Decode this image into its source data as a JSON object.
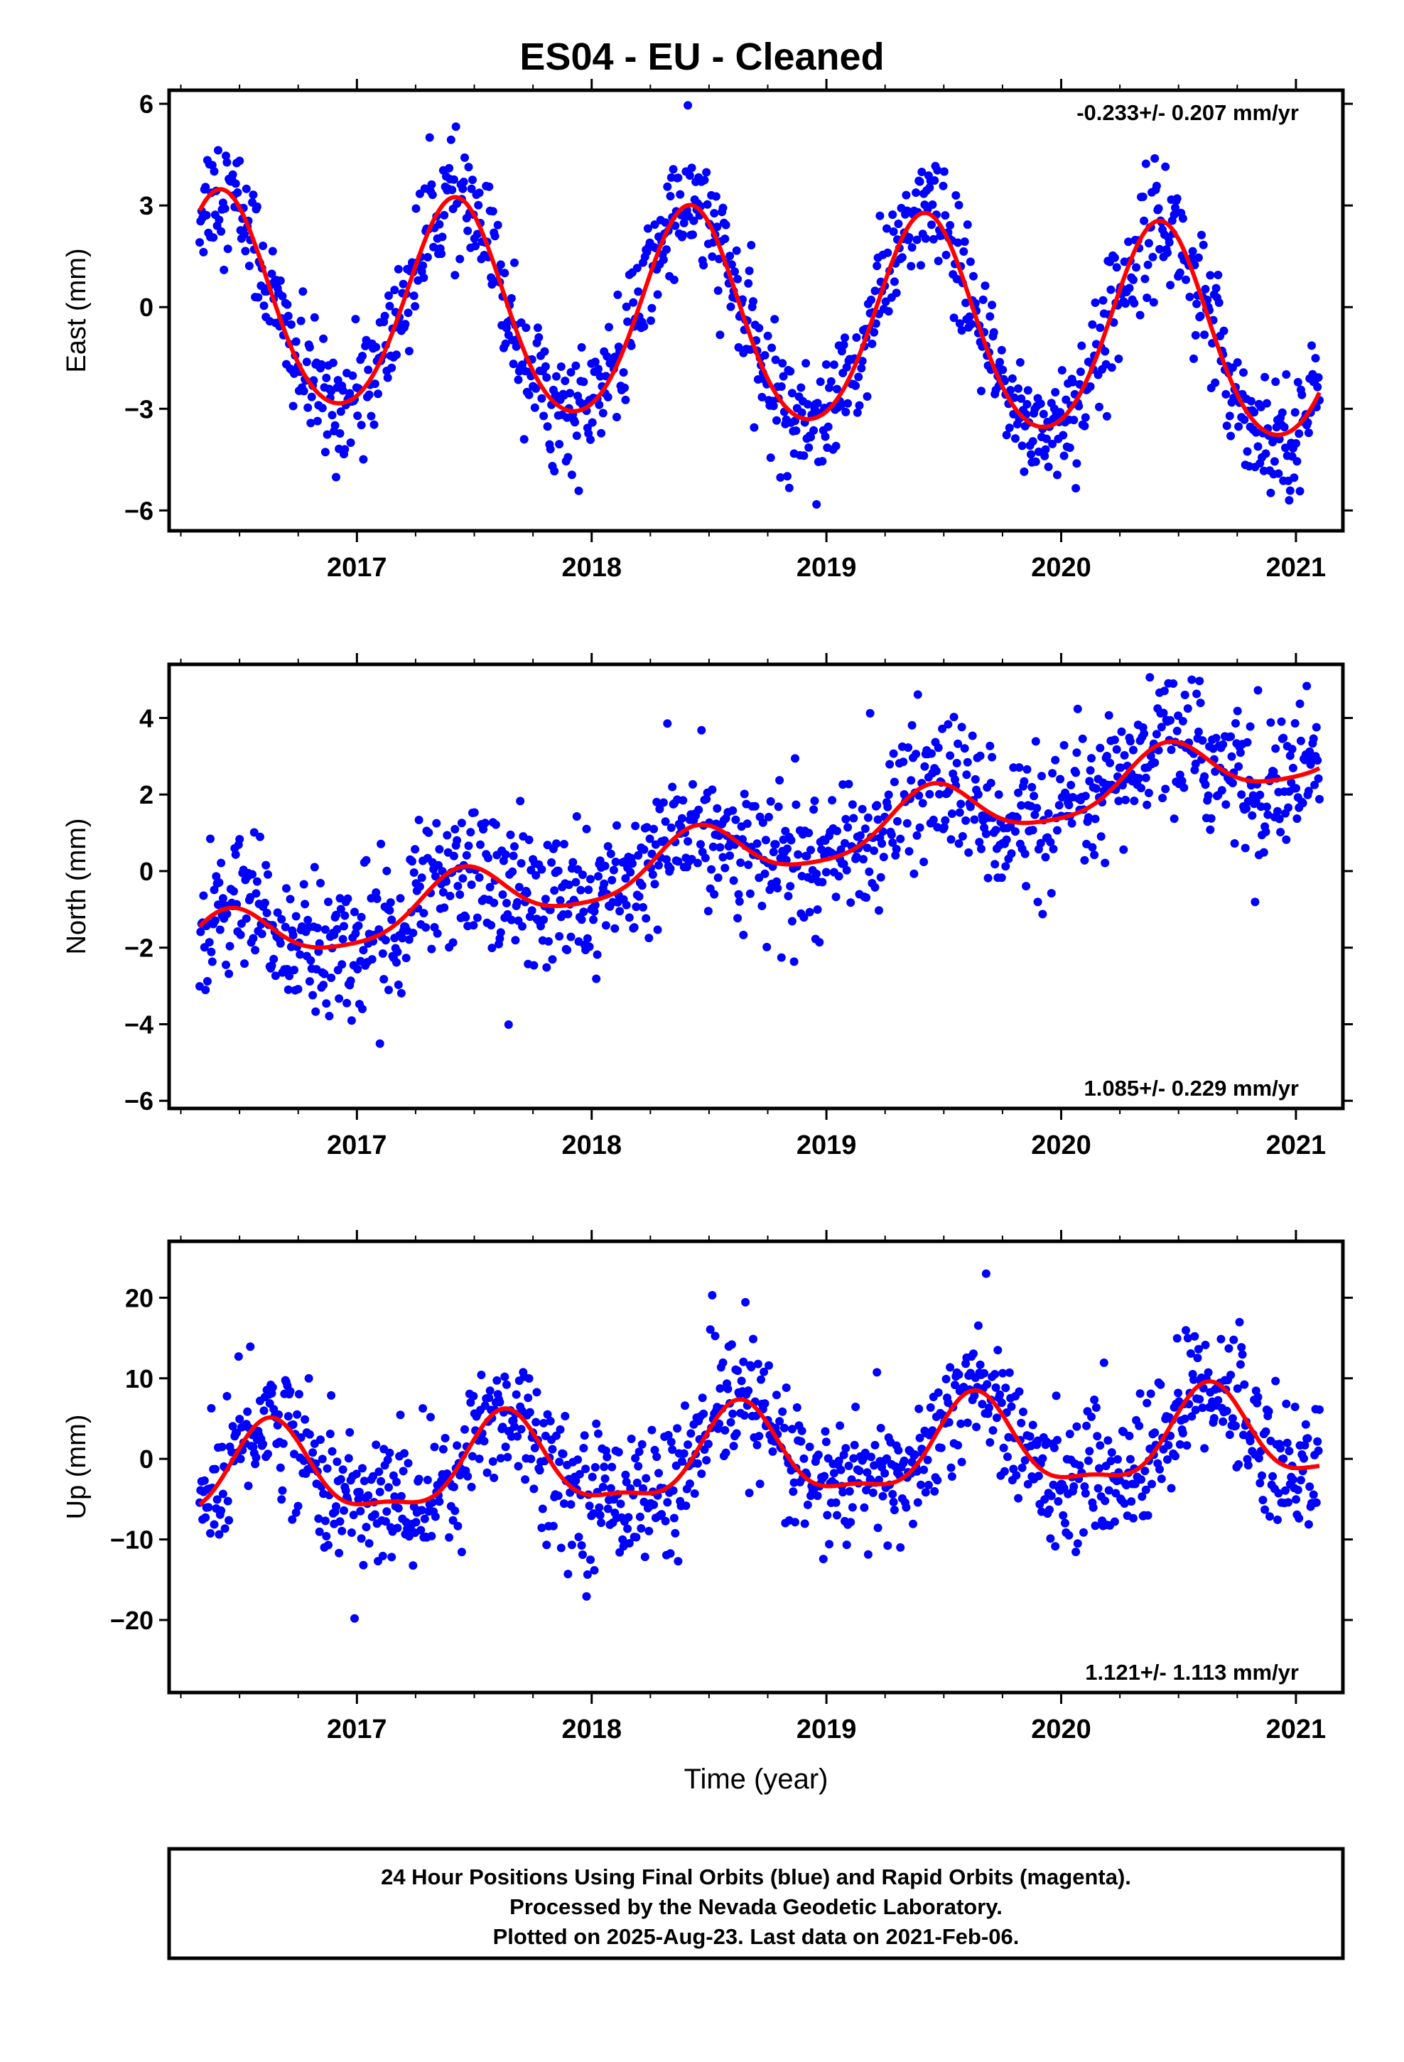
{
  "title": "ES04  - EU - Cleaned",
  "footer": {
    "line1": "24 Hour Positions Using Final Orbits (blue) and Rapid Orbits (magenta).",
    "line2": "Processed by the Nevada Geodetic Laboratory.",
    "line3": "Plotted on 2025-Aug-23. Last data on 2021-Feb-06."
  },
  "colors": {
    "data_points": "#0000ff",
    "fit_curve": "#ff0000",
    "frame": "#000000"
  },
  "chart_data": [
    {
      "type": "scatter",
      "name": "east",
      "ylabel": "East (mm)",
      "xlabel": "",
      "rate": "-0.233+/- 0.207 mm/yr",
      "rate_position": "top-right",
      "xlim": [
        2016.2,
        2021.2
      ],
      "ylim": [
        -6.6,
        6.4
      ],
      "yticks": [
        -6,
        -3,
        0,
        3,
        6
      ],
      "yticklabels": [
        "−6",
        "−3",
        "0",
        "3",
        "6"
      ],
      "xticks": [
        2017,
        2018,
        2019,
        2020,
        2021
      ],
      "xticklabels": [
        "2017",
        "2018",
        "2019",
        "2020",
        "2021"
      ],
      "x_range": [
        2016.33,
        2021.1
      ],
      "fit": {
        "offset": 0.1,
        "trend": -0.233,
        "annual_amp": 3.1,
        "semiannual_amp": 0.3,
        "peak_year_fraction": 0.42
      },
      "scatter_sd": 0.9,
      "n_points": 1150
    },
    {
      "type": "scatter",
      "name": "north",
      "ylabel": "North (mm)",
      "xlabel": "",
      "rate": "1.085+/- 0.229 mm/yr",
      "rate_position": "bottom-right",
      "xlim": [
        2016.2,
        2021.2
      ],
      "ylim": [
        -6.2,
        5.4
      ],
      "yticks": [
        -6,
        -4,
        -2,
        0,
        2,
        4
      ],
      "yticklabels": [
        "−6",
        "−4",
        "−2",
        "0",
        "2",
        "4"
      ],
      "xticks": [
        2017,
        2018,
        2019,
        2020,
        2021
      ],
      "xticklabels": [
        "2017",
        "2018",
        "2019",
        "2020",
        "2021"
      ],
      "x_range": [
        2016.33,
        2021.1
      ],
      "fit": {
        "offset": -2.0,
        "trend": 1.085,
        "annual_amp": 0.75,
        "semiannual_amp": 0.15,
        "peak_year_fraction": 0.45
      },
      "scatter_sd": 0.95,
      "n_points": 1150
    },
    {
      "type": "scatter",
      "name": "up",
      "ylabel": "Up (mm)",
      "xlabel": "Time (year)",
      "rate": "1.121+/- 1.113 mm/yr",
      "rate_position": "bottom-right",
      "xlim": [
        2016.2,
        2021.2
      ],
      "ylim": [
        -29,
        27
      ],
      "yticks": [
        -20,
        -10,
        0,
        10,
        20
      ],
      "yticklabels": [
        "−20",
        "−10",
        "0",
        "10",
        "20"
      ],
      "xticks": [
        2017,
        2018,
        2019,
        2020,
        2021
      ],
      "xticklabels": [
        "2017",
        "2018",
        "2019",
        "2020",
        "2021"
      ],
      "x_range": [
        2016.33,
        2021.1
      ],
      "fit": {
        "offset": -2.5,
        "trend": 1.121,
        "annual_amp": 5.5,
        "semiannual_amp": 1.8,
        "peak_year_fraction": 0.63
      },
      "scatter_sd": 4.2,
      "n_points": 1150
    }
  ]
}
